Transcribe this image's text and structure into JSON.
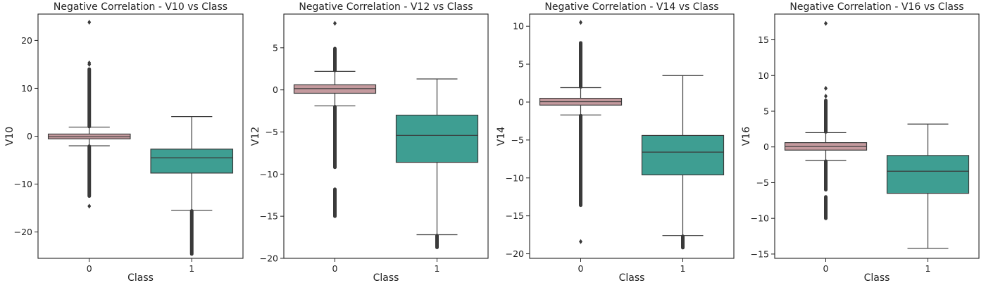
{
  "colors": {
    "class0_box": "#c49a9e",
    "class1_box": "#3e9e92",
    "box_edge": "#3a3a3a",
    "whisker": "#3a3a3a",
    "outlier": "#3a3a3a",
    "axes_edge": "#222222"
  },
  "chart_data": [
    {
      "type": "box",
      "title": "Negative Correlation - V10 vs Class",
      "xlabel": "Class",
      "ylabel": "V10",
      "categories": [
        "0",
        "1"
      ],
      "ylim": [
        -25.5,
        25.5
      ],
      "yticks": [
        -20,
        -10,
        0,
        10,
        20
      ],
      "ytick_labels": [
        "−20",
        "−10",
        "0",
        "10",
        "20"
      ],
      "boxes": [
        {
          "category": "0",
          "whislo": -2.0,
          "q1": -0.55,
          "median": -0.1,
          "q3": 0.45,
          "whishi": 1.9,
          "fliers_dense": [
            [
              -12.5,
              -2.1
            ],
            [
              2.0,
              14.0
            ]
          ],
          "fliers": [
            23.8,
            15.3,
            15.0,
            -14.6
          ]
        },
        {
          "category": "1",
          "whislo": -15.5,
          "q1": -7.7,
          "median": -4.5,
          "q3": -2.7,
          "whishi": 4.1,
          "fliers_dense": [
            [
              -24.6,
              -15.6
            ]
          ],
          "fliers": []
        }
      ]
    },
    {
      "type": "box",
      "title": "Negative Correlation - V12 vs Class",
      "xlabel": "Class",
      "ylabel": "V12",
      "categories": [
        "0",
        "1"
      ],
      "ylim": [
        -20,
        9
      ],
      "yticks": [
        -20,
        -15,
        -10,
        -5,
        0,
        5
      ],
      "ytick_labels": [
        "−20",
        "−15",
        "−10",
        "−5",
        "0",
        "5"
      ],
      "boxes": [
        {
          "category": "0",
          "whislo": -1.9,
          "q1": -0.4,
          "median": 0.15,
          "q3": 0.6,
          "whishi": 2.2,
          "fliers_dense": [
            [
              2.3,
              4.9
            ],
            [
              -9.2,
              -2.0
            ],
            [
              -15.0,
              -11.8
            ]
          ],
          "fliers": [
            7.9
          ]
        },
        {
          "category": "1",
          "whislo": -17.2,
          "q1": -8.6,
          "median": -5.4,
          "q3": -3.0,
          "whishi": 1.3,
          "fliers_dense": [
            [
              -18.7,
              -17.3
            ]
          ],
          "fliers": []
        }
      ]
    },
    {
      "type": "box",
      "title": "Negative Correlation - V14 vs Class",
      "xlabel": "Class",
      "ylabel": "V14",
      "categories": [
        "0",
        "1"
      ],
      "ylim": [
        -20.6,
        11.6
      ],
      "yticks": [
        -20,
        -15,
        -10,
        -5,
        0,
        5,
        10
      ],
      "ytick_labels": [
        "−20",
        "−15",
        "−10",
        "−5",
        "0",
        "5",
        "10"
      ],
      "boxes": [
        {
          "category": "0",
          "whislo": -1.7,
          "q1": -0.4,
          "median": 0.05,
          "q3": 0.5,
          "whishi": 1.9,
          "fliers_dense": [
            [
              2.0,
              7.8
            ],
            [
              -13.6,
              -1.8
            ]
          ],
          "fliers": [
            10.5,
            -18.4
          ]
        },
        {
          "category": "1",
          "whislo": -17.6,
          "q1": -9.6,
          "median": -6.6,
          "q3": -4.4,
          "whishi": 3.5,
          "fliers_dense": [
            [
              -19.2,
              -17.7
            ]
          ],
          "fliers": []
        }
      ]
    },
    {
      "type": "box",
      "title": "Negative Correlation - V16 vs Class",
      "xlabel": "Class",
      "ylabel": "V16",
      "categories": [
        "0",
        "1"
      ],
      "ylim": [
        -15.6,
        18.6
      ],
      "yticks": [
        -15,
        -10,
        -5,
        0,
        5,
        10,
        15
      ],
      "ytick_labels": [
        "−15",
        "−10",
        "−5",
        "0",
        "5",
        "10",
        "15"
      ],
      "boxes": [
        {
          "category": "0",
          "whislo": -1.9,
          "q1": -0.45,
          "median": 0.05,
          "q3": 0.6,
          "whishi": 2.0,
          "fliers_dense": [
            [
              2.1,
              6.5
            ],
            [
              -6.0,
              -2.0
            ],
            [
              -10.0,
              -7.0
            ]
          ],
          "fliers": [
            17.3,
            8.2,
            7.1
          ]
        },
        {
          "category": "1",
          "whislo": -14.2,
          "q1": -6.5,
          "median": -3.4,
          "q3": -1.2,
          "whishi": 3.2,
          "fliers_dense": [],
          "fliers": []
        }
      ]
    }
  ]
}
